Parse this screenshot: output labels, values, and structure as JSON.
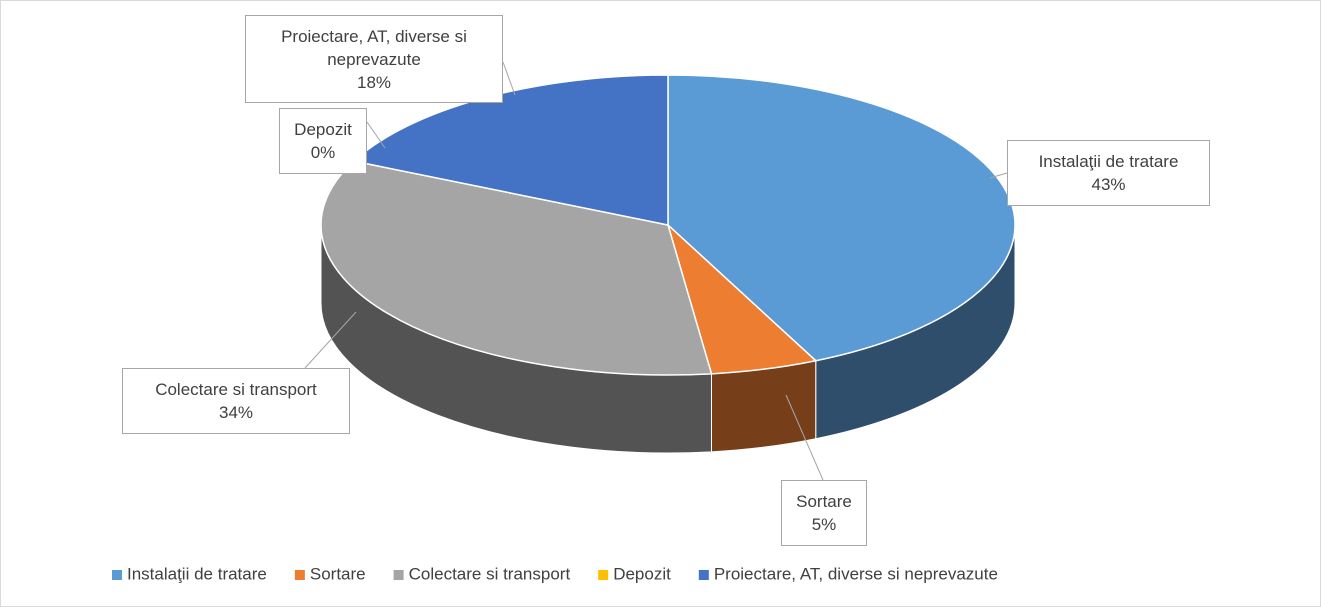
{
  "chart_data": {
    "type": "pie",
    "categories": [
      "Instalaţii de tratare",
      "Sortare",
      "Colectare si transport",
      "Depozit",
      "Proiectare, AT, diverse si neprevazute"
    ],
    "values": [
      43,
      5,
      34,
      0,
      18
    ],
    "value_labels": [
      "43%",
      "5%",
      "34%",
      "0%",
      "18%"
    ],
    "colors": [
      "#5b9bd5",
      "#ed7d31",
      "#a5a5a5",
      "#ffc000",
      "#4472c4"
    ],
    "legend": "bottom"
  }
}
